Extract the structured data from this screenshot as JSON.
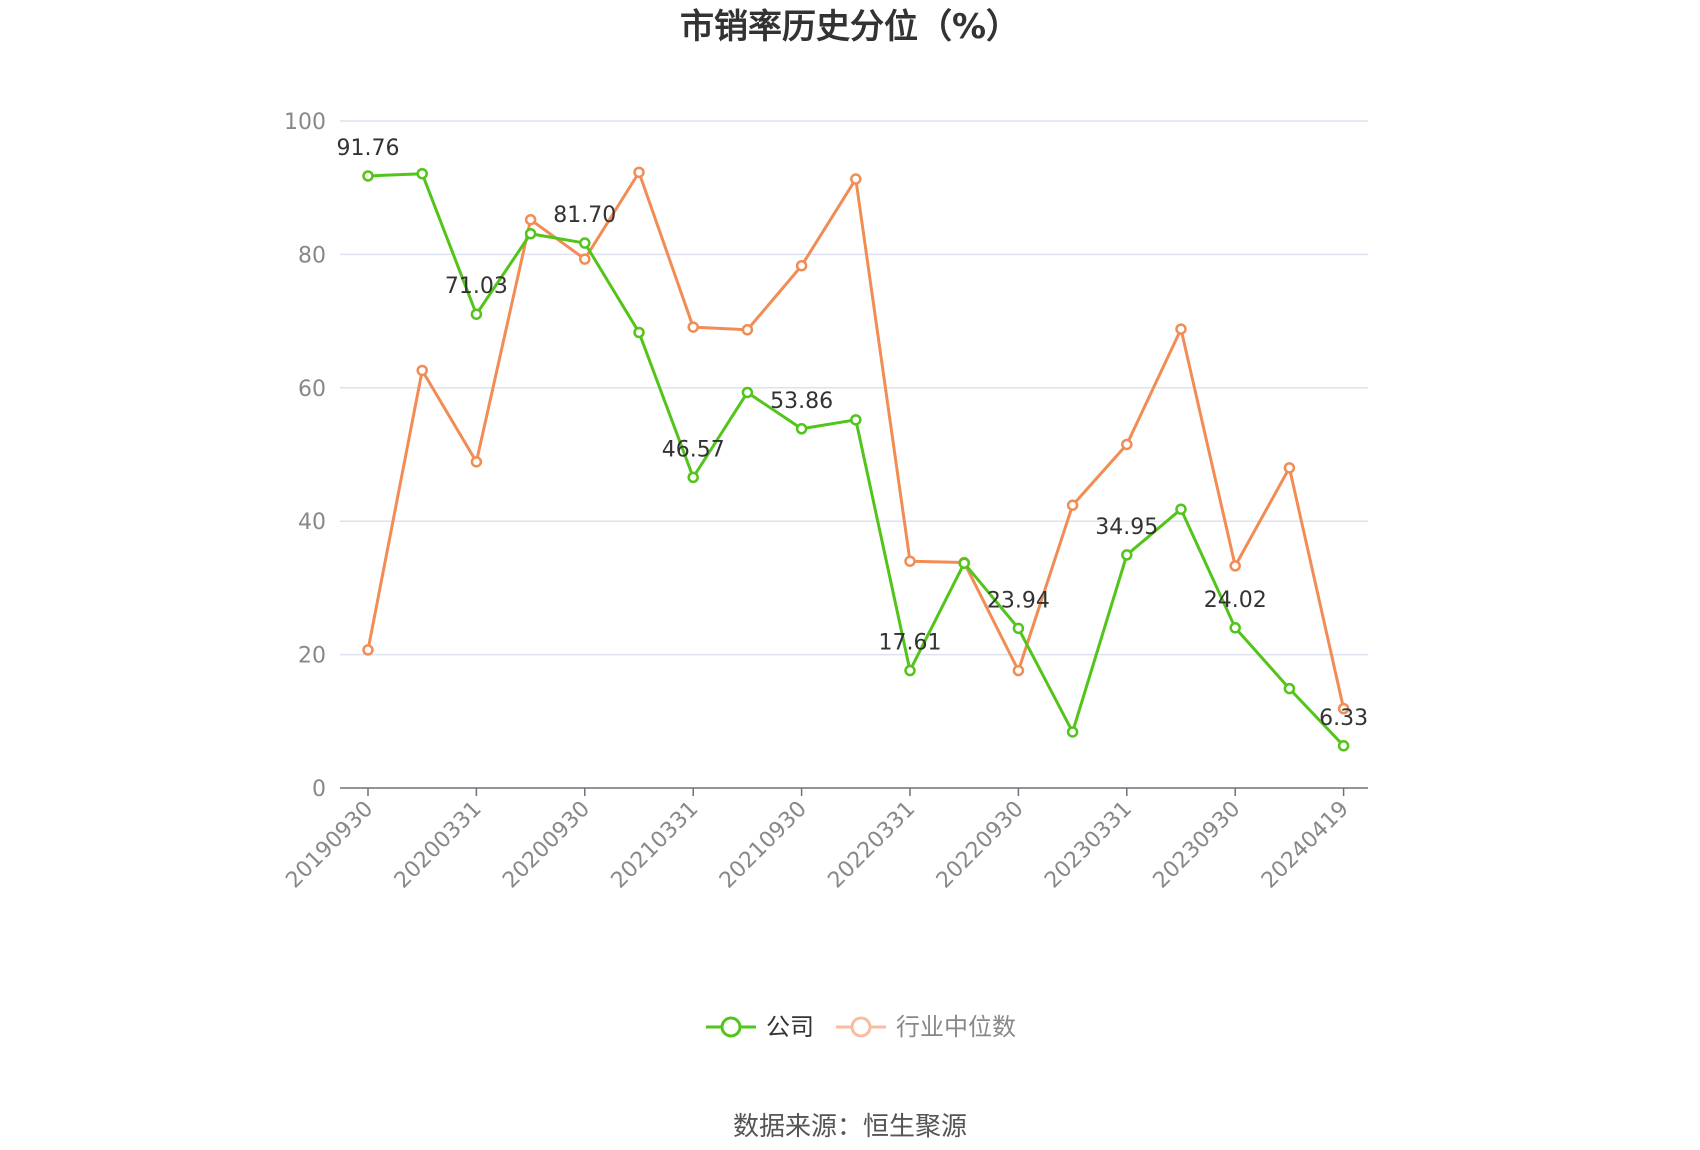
{
  "chart_data": {
    "type": "line",
    "title": "市销率历史分位（%）",
    "xlabel": "",
    "ylabel": "",
    "ylim": [
      0,
      100
    ],
    "yticks": [
      0,
      20,
      40,
      60,
      80,
      100
    ],
    "x": [
      "20190930",
      "20191231",
      "20200331",
      "20200630",
      "20200930",
      "20201231",
      "20210331",
      "20210630",
      "20210930",
      "20211231",
      "20220331",
      "20220630",
      "20220930",
      "20221231",
      "20230331",
      "20230630",
      "20230930",
      "20231231",
      "20240419"
    ],
    "xtick_labels": [
      "20190930",
      "20200331",
      "20200930",
      "20210331",
      "20210930",
      "20220331",
      "20220930",
      "20230331",
      "20230930",
      "20240419"
    ],
    "series": [
      {
        "name": "公司",
        "color": "#52c41a",
        "values": [
          91.76,
          92.1,
          71.03,
          83.1,
          81.7,
          68.3,
          46.57,
          59.3,
          53.86,
          55.2,
          17.61,
          33.7,
          23.94,
          8.4,
          34.95,
          41.8,
          24.02,
          14.9,
          6.33
        ],
        "labeled_values": [
          "91.76",
          "",
          "71.03",
          "",
          "81.70",
          "",
          "46.57",
          "",
          "53.86",
          "",
          "17.61",
          "",
          "23.94",
          "",
          "34.95",
          "",
          "24.02",
          "",
          "6.33"
        ]
      },
      {
        "name": "行业中位数",
        "color": "#f28c55",
        "values": [
          20.7,
          62.6,
          48.9,
          85.2,
          79.3,
          92.3,
          69.1,
          68.7,
          78.3,
          91.3,
          34.0,
          33.8,
          17.6,
          42.4,
          51.5,
          68.8,
          33.3,
          48.0,
          11.9
        ]
      }
    ],
    "legend_placement": "bottom-center",
    "grid": true
  },
  "legend": {
    "items": [
      "公司",
      "行业中位数"
    ]
  },
  "source": "数据来源：恒生聚源"
}
